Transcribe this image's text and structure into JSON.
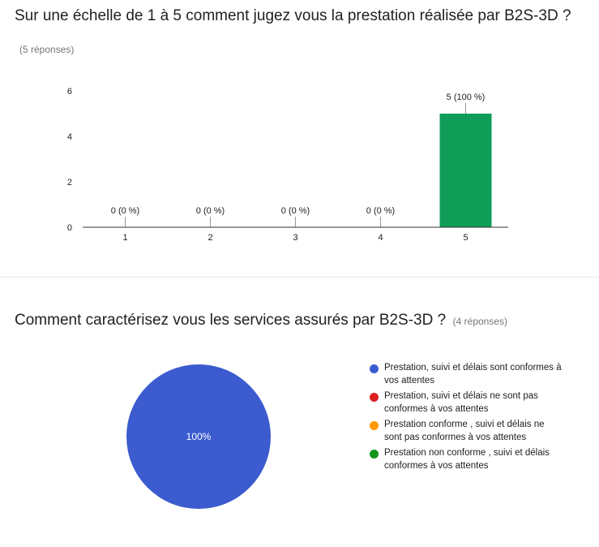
{
  "question1": {
    "title": "Sur une échelle de 1 à 5 comment jugez vous la prestation réalisée par B2S-3D ?",
    "responses": "(5 réponses)"
  },
  "question2": {
    "title": "Comment caractérisez vous les services assurés par B2S-3D ?",
    "responses": "(4 réponses)"
  },
  "chart_data": [
    {
      "type": "bar",
      "categories": [
        "1",
        "2",
        "3",
        "4",
        "5"
      ],
      "values": [
        0,
        0,
        0,
        0,
        5
      ],
      "data_labels": [
        "0 (0 %)",
        "0 (0 %)",
        "0 (0 %)",
        "0 (0 %)",
        "5 (100 %)"
      ],
      "yticks": [
        0,
        2,
        4,
        6
      ],
      "ylim": [
        0,
        6
      ],
      "color": "#0f9d58",
      "grid": false
    },
    {
      "type": "pie",
      "labels": [
        "Prestation, suivi et délais sont conformes à vos attentes",
        "Prestation, suivi et délais ne sont pas conformes à vos attentes",
        "Prestation conforme , suivi et délais ne sont pas conformes à vos attentes",
        "Prestation non conforme , suivi et délais conformes à vos attentes"
      ],
      "values": [
        100,
        0,
        0,
        0
      ],
      "slice_labels": [
        "100%"
      ],
      "colors": [
        "#3b5bcf",
        "#db1f1f",
        "#ff9900",
        "#109618"
      ],
      "legend_position": "right"
    }
  ]
}
